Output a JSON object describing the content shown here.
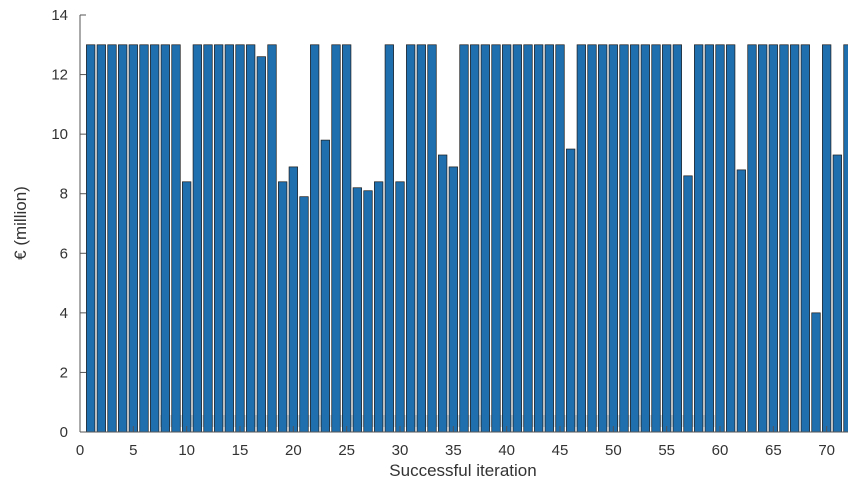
{
  "chart_data": {
    "type": "bar",
    "title": "",
    "xlabel": "Successful iteration",
    "ylabel": "€ (million)",
    "xlim": [
      0,
      72
    ],
    "ylim": [
      0,
      14
    ],
    "xticks": [
      0,
      5,
      10,
      15,
      20,
      25,
      30,
      35,
      40,
      45,
      50,
      55,
      60,
      65,
      70
    ],
    "yticks": [
      0,
      2,
      4,
      6,
      8,
      10,
      12,
      14
    ],
    "grid": false,
    "legend": "none",
    "bar_color": "#1f6fae",
    "x": [
      1,
      2,
      3,
      4,
      5,
      6,
      7,
      8,
      9,
      10,
      11,
      12,
      13,
      14,
      15,
      16,
      17,
      18,
      19,
      20,
      21,
      22,
      23,
      24,
      25,
      26,
      27,
      28,
      29,
      30,
      31,
      32,
      33,
      34,
      35,
      36,
      37,
      38,
      39,
      40,
      41,
      42,
      43,
      44,
      45,
      46,
      47,
      48,
      49,
      50,
      51,
      52,
      53,
      54,
      55,
      56,
      57,
      58,
      59,
      60,
      61,
      62,
      63,
      64,
      65,
      66,
      67,
      68,
      69,
      70,
      71,
      72
    ],
    "values": [
      13,
      13,
      13,
      13,
      13,
      13,
      13,
      13,
      13,
      8.4,
      13,
      13,
      13,
      13,
      13,
      13,
      12.6,
      13,
      8.4,
      8.9,
      7.9,
      13,
      9.8,
      13,
      13,
      8.2,
      8.1,
      8.4,
      13,
      8.4,
      13,
      13,
      13,
      9.3,
      8.9,
      13,
      13,
      13,
      13,
      13,
      13,
      13,
      13,
      13,
      13,
      9.5,
      13,
      13,
      13,
      13,
      13,
      13,
      13,
      13,
      13,
      13,
      8.6,
      13,
      13,
      13,
      13,
      8.8,
      13,
      13,
      13,
      13,
      13,
      13,
      4.0,
      13,
      9.3,
      13
    ]
  }
}
